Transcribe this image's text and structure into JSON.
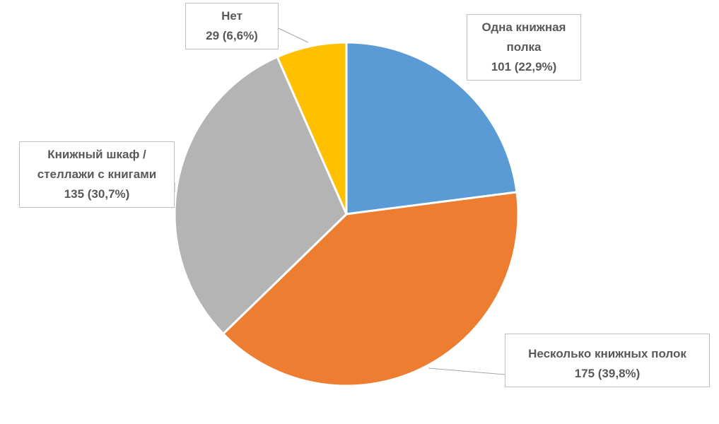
{
  "chart_data": {
    "type": "pie",
    "title": "",
    "start_angle_deg": 0,
    "direction": "clockwise",
    "slices": [
      {
        "label_lines": [
          "Одна книжная",
          "полка"
        ],
        "value_label": "101 (22,9%)",
        "value": 101,
        "percent": 22.9,
        "color": "#5B9BD5"
      },
      {
        "label_lines": [
          "Несколько книжных полок"
        ],
        "value_label": "175 (39,8%)",
        "value": 175,
        "percent": 39.8,
        "color": "#ED7D31"
      },
      {
        "label_lines": [
          "Книжный шкаф /",
          "стеллажи с книгами"
        ],
        "value_label": "135 (30,7%)",
        "value": 135,
        "percent": 30.7,
        "color": "#B4B4B4"
      },
      {
        "label_lines": [
          "Нет"
        ],
        "value_label": "29 (6,6%)",
        "value": 29,
        "percent": 6.6,
        "color": "#FFC000"
      }
    ],
    "legend": "none",
    "data_labels": "callouts"
  }
}
